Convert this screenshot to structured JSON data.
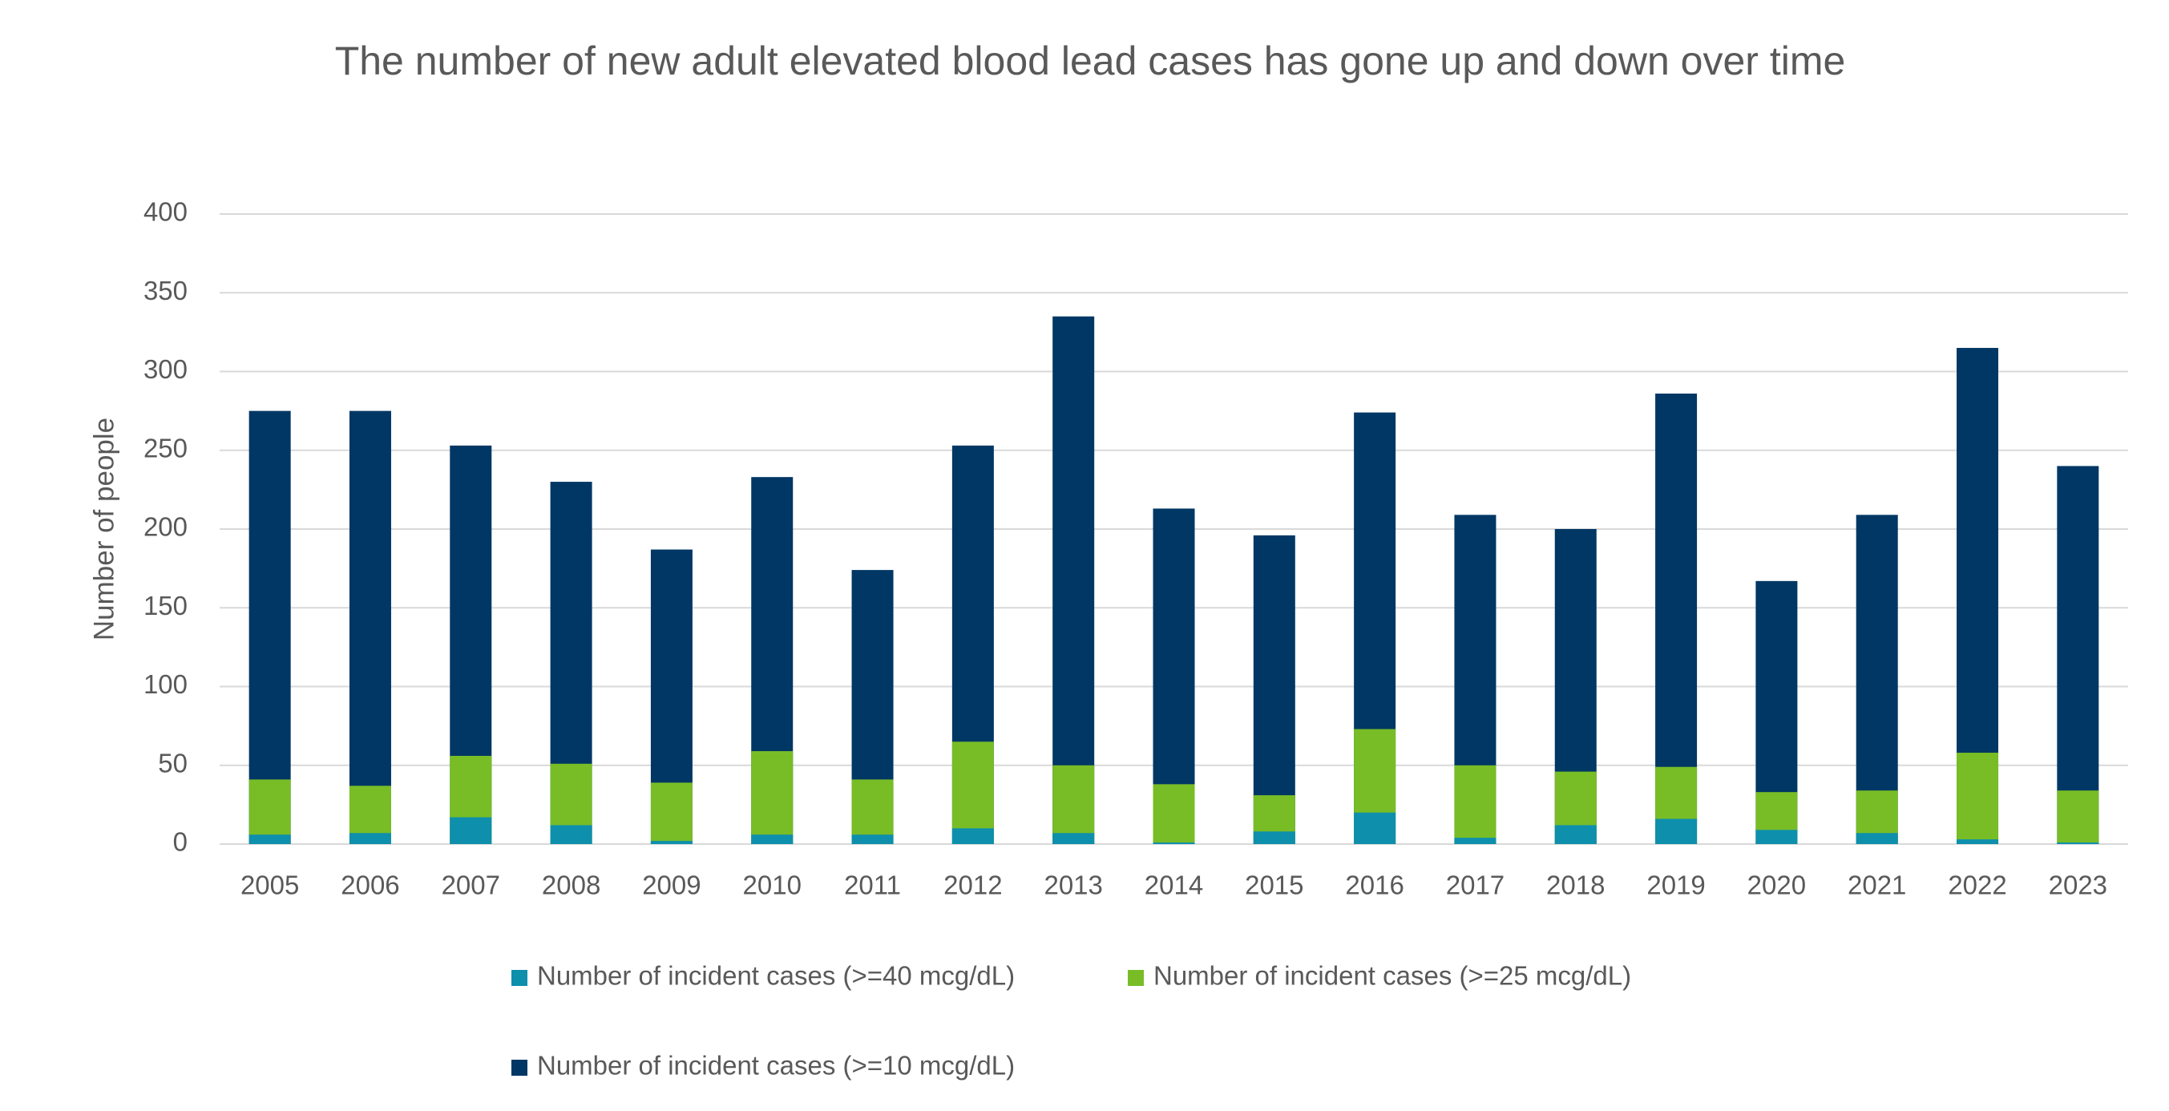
{
  "chart_data": {
    "type": "bar",
    "title": "The number of new adult elevated blood lead cases has gone up and down over time",
    "y_label": "Number of people",
    "categories": [
      "2005",
      "2006",
      "2007",
      "2008",
      "2009",
      "2010",
      "2011",
      "2012",
      "2013",
      "2014",
      "2015",
      "2016",
      "2017",
      "2018",
      "2019",
      "2020",
      "2021",
      "2022",
      "2023"
    ],
    "series": [
      {
        "name": "Number of incident cases (>=40 mcg/dL)",
        "color": "#0e8fac",
        "values": [
          6,
          7,
          17,
          12,
          2,
          6,
          6,
          10,
          7,
          1,
          8,
          20,
          4,
          12,
          16,
          9,
          7,
          3,
          1
        ]
      },
      {
        "name": "Number of incident cases (>=25 mcg/dL)",
        "color": "#78bd26",
        "values": [
          41,
          37,
          56,
          51,
          39,
          59,
          41,
          65,
          50,
          38,
          31,
          73,
          50,
          46,
          49,
          33,
          34,
          58,
          34
        ]
      },
      {
        "name": "Number of incident cases (>=10 mcg/dL)",
        "color": "#003764",
        "values": [
          275,
          275,
          253,
          230,
          187,
          233,
          174,
          253,
          335,
          213,
          196,
          274,
          209,
          200,
          286,
          167,
          209,
          315,
          240
        ]
      }
    ],
    "ylim": [
      0,
      400
    ],
    "yticks": [
      0,
      50,
      100,
      150,
      200,
      250,
      300,
      350,
      400
    ],
    "grid": true,
    "legend": "bottom"
  }
}
